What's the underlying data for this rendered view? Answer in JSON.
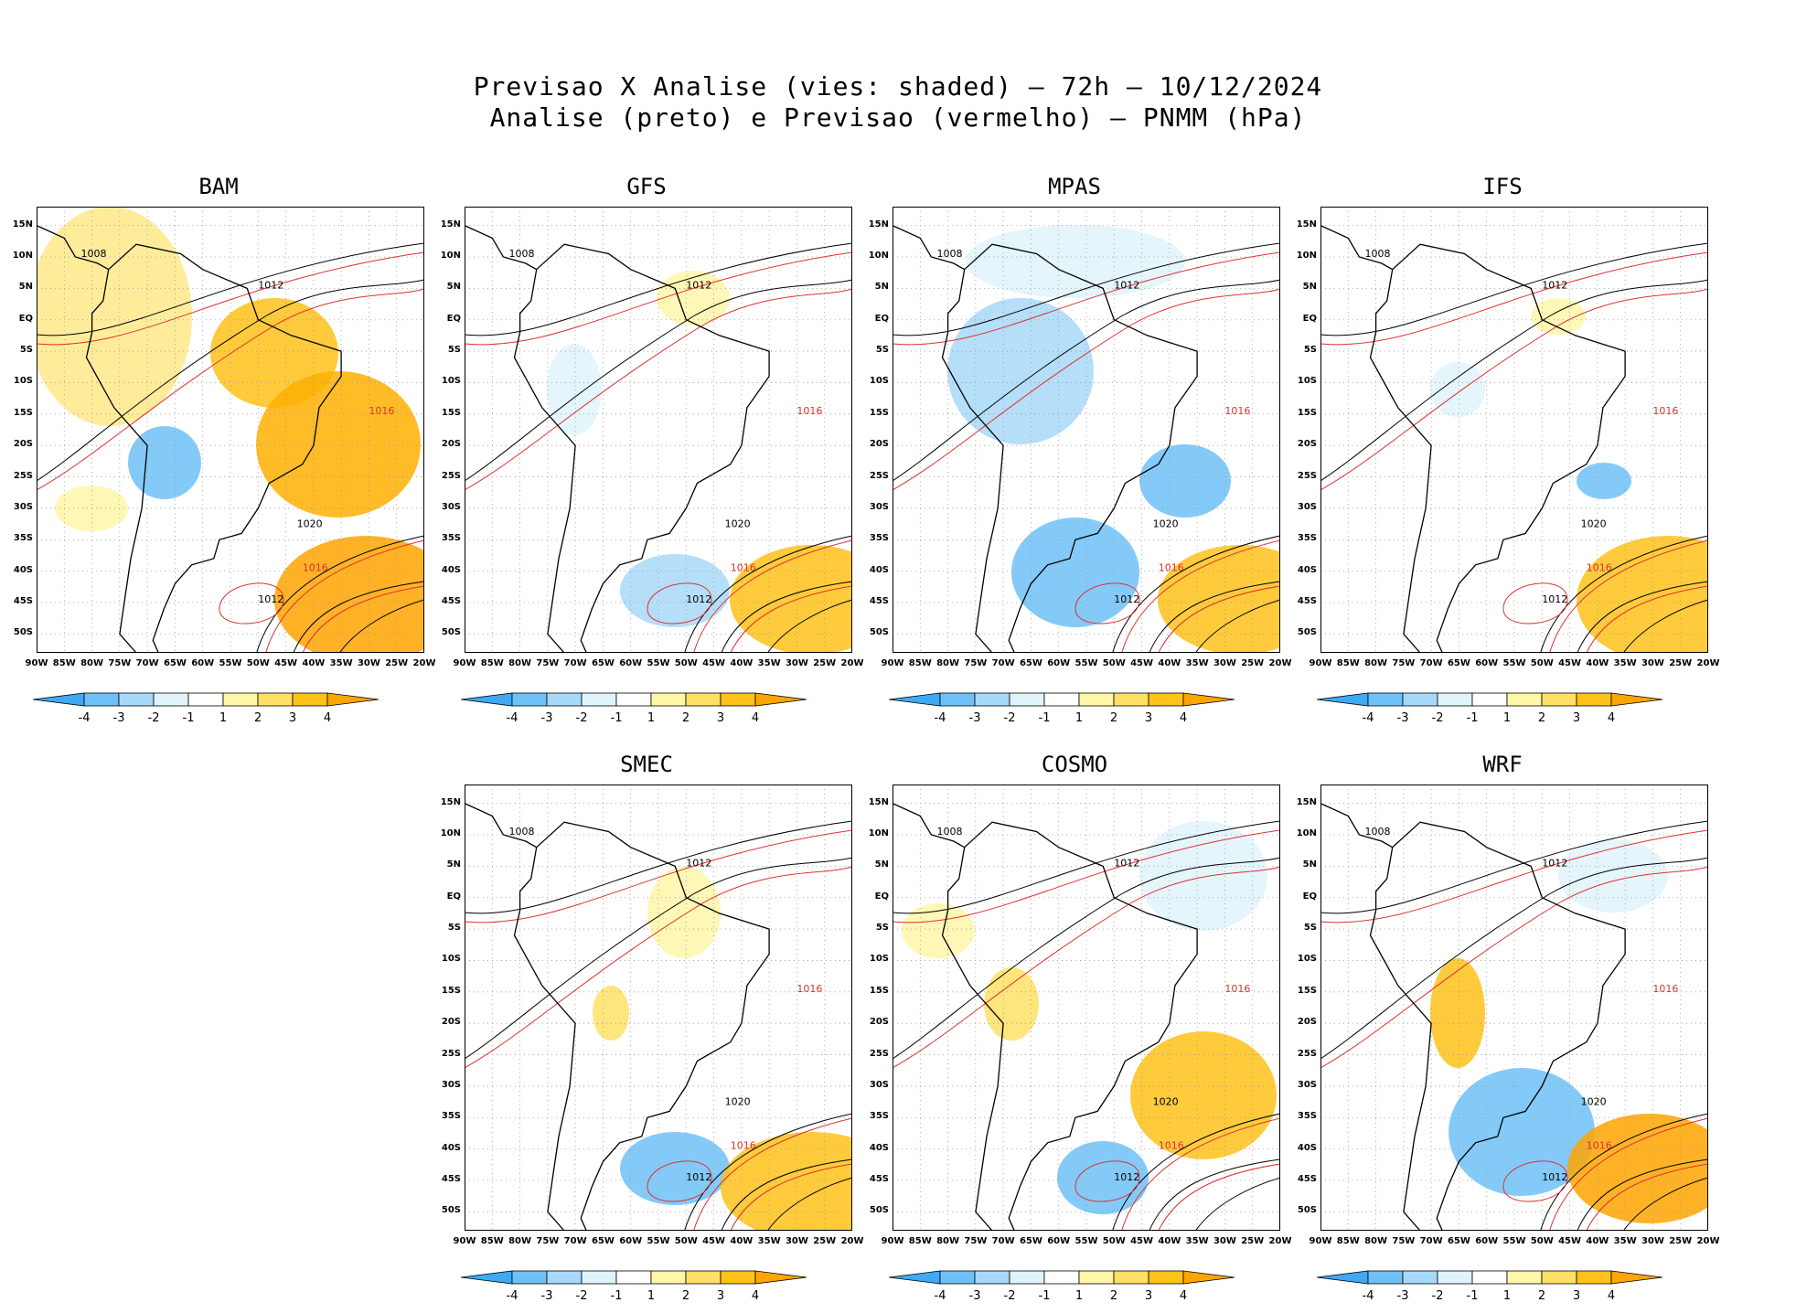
{
  "title_line1": "Previsao X Analise (vies: shaded) — 72h — 10/12/2024",
  "title_line2": "Analise (preto) e Previsao (vermelho) — PNMM (hPa)",
  "panels": [
    {
      "name": "BAM"
    },
    {
      "name": "GFS"
    },
    {
      "name": "MPAS"
    },
    {
      "name": "IFS"
    },
    {
      "name": "SMEC"
    },
    {
      "name": "COSMO"
    },
    {
      "name": "WRF"
    }
  ],
  "lat_labels": [
    "15N",
    "10N",
    "5N",
    "EQ",
    "5S",
    "10S",
    "15S",
    "20S",
    "25S",
    "30S",
    "35S",
    "40S",
    "45S",
    "50S"
  ],
  "lon_labels": [
    "90W",
    "85W",
    "80W",
    "75W",
    "70W",
    "65W",
    "60W",
    "55W",
    "50W",
    "45W",
    "40W",
    "35W",
    "30W",
    "25W",
    "20W"
  ],
  "colorbar": {
    "labels": [
      "-4",
      "-3",
      "-2",
      "-1",
      "1",
      "2",
      "3",
      "4"
    ],
    "colors": [
      "#3fa9f5",
      "#6ec1f7",
      "#a8d8f8",
      "#dff3fb",
      "#ffffff",
      "#fff6a8",
      "#ffe066",
      "#ffc21a",
      "#ffa500"
    ]
  },
  "contour_labels": {
    "c1008": "1008",
    "c1012": "1012",
    "c1016": "1016",
    "c1020": "1020"
  },
  "colors": {
    "analysis": "#000000",
    "forecast": "#e03030"
  }
}
